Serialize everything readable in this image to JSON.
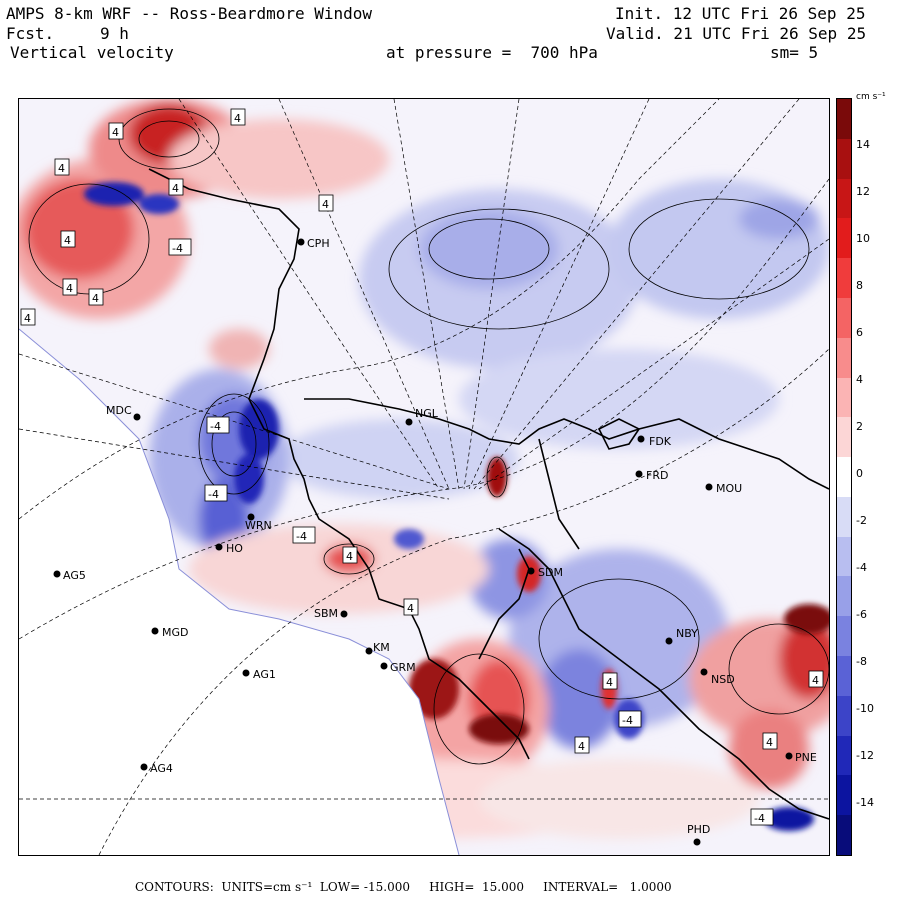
{
  "header": {
    "title": "AMPS 8-km WRF -- Ross-Beardmore Window",
    "init": "Init. 12 UTC Fri 26 Sep 25",
    "fcst_label": "Fcst.",
    "fcst_value": "9 h",
    "valid": "Valid. 21 UTC Fri 26 Sep 25",
    "field": "Vertical velocity",
    "pressure": "at pressure =  700 hPa",
    "smooth": "sm= 5"
  },
  "colorbar": {
    "units": "cm s⁻¹",
    "ticks": [
      "14",
      "12",
      "10",
      "8",
      "6",
      "4",
      "2",
      "0",
      "-2",
      "-4",
      "-6",
      "-8",
      "-10",
      "-12",
      "-14"
    ],
    "colors": [
      "#7a0a0a",
      "#a81010",
      "#c81616",
      "#e21c1c",
      "#f03c3c",
      "#f46464",
      "#f88c8c",
      "#fbb4b4",
      "#fcd6d6",
      "#ffffff",
      "#d8dcf6",
      "#b8bef0",
      "#98a0e8",
      "#7a82e0",
      "#5a62d6",
      "#3c44c8",
      "#2028b8",
      "#0c14a0",
      "#080c7a"
    ]
  },
  "stations": [
    {
      "id": "CPH"
    },
    {
      "id": "MDC"
    },
    {
      "id": "NGL"
    },
    {
      "id": "FDK"
    },
    {
      "id": "FRD"
    },
    {
      "id": "MOU"
    },
    {
      "id": "WRN"
    },
    {
      "id": "HO"
    },
    {
      "id": "SDM"
    },
    {
      "id": "AG5"
    },
    {
      "id": "SBM"
    },
    {
      "id": "MGD"
    },
    {
      "id": "NBY"
    },
    {
      "id": "KM"
    },
    {
      "id": "GRM"
    },
    {
      "id": "AG1"
    },
    {
      "id": "NSD"
    },
    {
      "id": "PNE"
    },
    {
      "id": "AG4"
    },
    {
      "id": "PHD"
    }
  ],
  "contour_labels": [
    "4",
    "4",
    "4",
    "4",
    "4",
    "4",
    "4",
    "-4",
    "4",
    "-4",
    "-4",
    "-4",
    "4",
    "4",
    "4",
    "4",
    "-4",
    "4",
    "4",
    "4",
    "-4"
  ],
  "footer": {
    "contours_label": "CONTOURS:",
    "units": "UNITS=cm s⁻¹",
    "low": "LOW= -15.000",
    "high": "HIGH=  15.000",
    "interval": "INTERVAL=   1.0000"
  }
}
